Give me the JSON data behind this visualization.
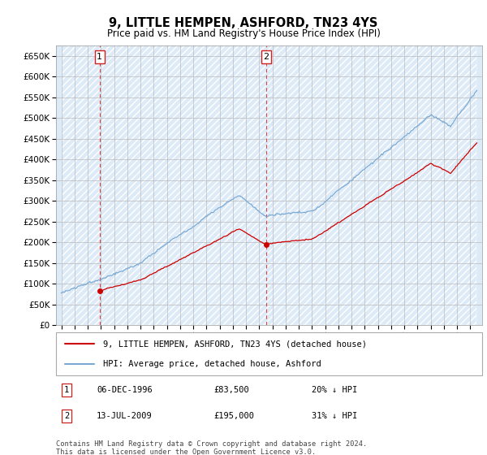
{
  "title": "9, LITTLE HEMPEN, ASHFORD, TN23 4YS",
  "subtitle": "Price paid vs. HM Land Registry's House Price Index (HPI)",
  "ylim": [
    0,
    675000
  ],
  "yticks": [
    0,
    50000,
    100000,
    150000,
    200000,
    250000,
    300000,
    350000,
    400000,
    450000,
    500000,
    550000,
    600000,
    650000
  ],
  "hpi_color": "#7aaad4",
  "price_color": "#cc0000",
  "bg_color": "#ddeaf7",
  "grid_color": "#bbbbbb",
  "sale1_year": 1996.93,
  "sale1_price": 83500,
  "sale1_date": "06-DEC-1996",
  "sale1_label": "20% ↓ HPI",
  "sale2_year": 2009.53,
  "sale2_price": 195000,
  "sale2_date": "13-JUL-2009",
  "sale2_label": "31% ↓ HPI",
  "legend_line1": "9, LITTLE HEMPEN, ASHFORD, TN23 4YS (detached house)",
  "legend_line2": "HPI: Average price, detached house, Ashford",
  "footer": "Contains HM Land Registry data © Crown copyright and database right 2024.\nThis data is licensed under the Open Government Licence v3.0."
}
